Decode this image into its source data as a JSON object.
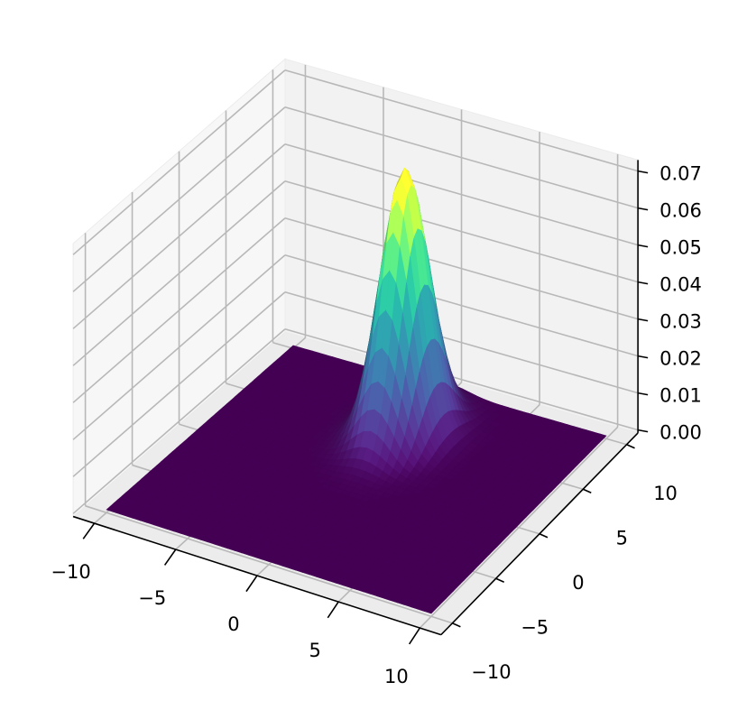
{
  "chart_data": {
    "type": "surface",
    "title": "",
    "xlabel": "",
    "ylabel": "",
    "zlabel": "",
    "colormap": "viridis",
    "x_range": [
      -10,
      10
    ],
    "y_range": [
      -10,
      10
    ],
    "zlim": [
      0,
      0.073
    ],
    "x_ticks": [
      "−10",
      "−5",
      "0",
      "5",
      "10"
    ],
    "x_tick_values": [
      -10,
      -5,
      0,
      5,
      10
    ],
    "y_ticks": [
      "−10",
      "−5",
      "0",
      "5",
      "10"
    ],
    "y_tick_values": [
      -10,
      -5,
      0,
      5,
      10
    ],
    "z_ticks": [
      "0.00",
      "0.01",
      "0.02",
      "0.03",
      "0.04",
      "0.05",
      "0.06",
      "0.07"
    ],
    "z_tick_values": [
      0,
      0.01,
      0.02,
      0.03,
      0.04,
      0.05,
      0.06,
      0.07
    ],
    "surface": {
      "function": "bivariate normal density",
      "mean": [
        0,
        5
      ],
      "sigma": [
        1.2,
        1.85
      ],
      "peak_z": 0.0717
    },
    "grid": true,
    "view": {
      "elevation": 30,
      "azimuth": -60
    }
  }
}
